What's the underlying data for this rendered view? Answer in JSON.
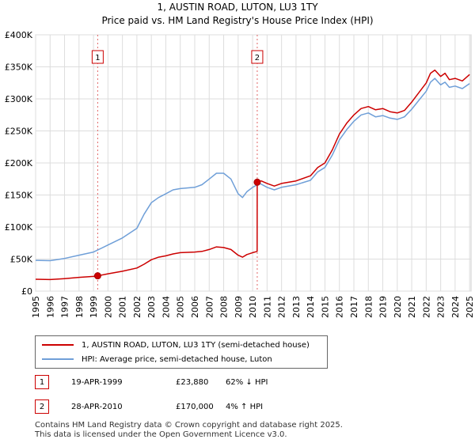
{
  "header": {
    "title": "1, AUSTIN ROAD, LUTON, LU3 1TY",
    "subtitle": "Price paid vs. HM Land Registry's House Price Index (HPI)"
  },
  "chart_data": {
    "type": "line",
    "x_range": [
      1995,
      2025.1
    ],
    "ylim": [
      0,
      400000
    ],
    "y_ticks": [
      {
        "v": 0,
        "label": "£0"
      },
      {
        "v": 50000,
        "label": "£50K"
      },
      {
        "v": 100000,
        "label": "£100K"
      },
      {
        "v": 150000,
        "label": "£150K"
      },
      {
        "v": 200000,
        "label": "£200K"
      },
      {
        "v": 250000,
        "label": "£250K"
      },
      {
        "v": 300000,
        "label": "£300K"
      },
      {
        "v": 350000,
        "label": "£350K"
      },
      {
        "v": 400000,
        "label": "£400K"
      }
    ],
    "x_ticks": [
      "1995",
      "1996",
      "1997",
      "1998",
      "1999",
      "2000",
      "2001",
      "2002",
      "2003",
      "2004",
      "2005",
      "2006",
      "2007",
      "2008",
      "2009",
      "2010",
      "2011",
      "2012",
      "2013",
      "2014",
      "2015",
      "2016",
      "2017",
      "2018",
      "2019",
      "2020",
      "2021",
      "2022",
      "2023",
      "2024",
      "2025"
    ],
    "grid": true,
    "series": [
      {
        "name": "1, AUSTIN ROAD, LUTON, LU3 1TY (semi-detached house)",
        "color": "#cc0000",
        "points": [
          [
            1995.0,
            18500
          ],
          [
            1996.0,
            18000
          ],
          [
            1997.0,
            19500
          ],
          [
            1998.0,
            21500
          ],
          [
            1999.0,
            23000
          ],
          [
            1999.29,
            23880
          ],
          [
            2000.0,
            27000
          ],
          [
            2001.0,
            31000
          ],
          [
            2002.0,
            36000
          ],
          [
            2002.5,
            42000
          ],
          [
            2003.0,
            49000
          ],
          [
            2003.5,
            53000
          ],
          [
            2004.0,
            55000
          ],
          [
            2004.5,
            58000
          ],
          [
            2005.0,
            60000
          ],
          [
            2006.0,
            61000
          ],
          [
            2006.5,
            62000
          ],
          [
            2007.0,
            65000
          ],
          [
            2007.5,
            69000
          ],
          [
            2008.0,
            68000
          ],
          [
            2008.5,
            65000
          ],
          [
            2009.0,
            56000
          ],
          [
            2009.3,
            53000
          ],
          [
            2009.6,
            57000
          ],
          [
            2010.0,
            60000
          ],
          [
            2010.31,
            62000
          ],
          [
            2010.32,
            170000
          ],
          [
            2010.6,
            172000
          ],
          [
            2011.0,
            168000
          ],
          [
            2011.5,
            164000
          ],
          [
            2012.0,
            168000
          ],
          [
            2013.0,
            172000
          ],
          [
            2014.0,
            180000
          ],
          [
            2014.5,
            193000
          ],
          [
            2015.0,
            200000
          ],
          [
            2015.5,
            220000
          ],
          [
            2016.0,
            245000
          ],
          [
            2016.5,
            262000
          ],
          [
            2017.0,
            275000
          ],
          [
            2017.5,
            285000
          ],
          [
            2018.0,
            288000
          ],
          [
            2018.5,
            283000
          ],
          [
            2019.0,
            285000
          ],
          [
            2019.5,
            280000
          ],
          [
            2020.0,
            278000
          ],
          [
            2020.5,
            282000
          ],
          [
            2021.0,
            295000
          ],
          [
            2021.5,
            310000
          ],
          [
            2022.0,
            325000
          ],
          [
            2022.3,
            340000
          ],
          [
            2022.6,
            345000
          ],
          [
            2023.0,
            335000
          ],
          [
            2023.3,
            340000
          ],
          [
            2023.6,
            330000
          ],
          [
            2024.0,
            332000
          ],
          [
            2024.5,
            328000
          ],
          [
            2025.0,
            338000
          ]
        ]
      },
      {
        "name": "HPI: Average price, semi-detached house, Luton",
        "color": "#6f9fd8",
        "points": [
          [
            1995.0,
            48000
          ],
          [
            1996.0,
            47500
          ],
          [
            1997.0,
            51000
          ],
          [
            1998.0,
            56000
          ],
          [
            1999.0,
            61000
          ],
          [
            2000.0,
            72000
          ],
          [
            2001.0,
            83000
          ],
          [
            2002.0,
            98000
          ],
          [
            2002.5,
            120000
          ],
          [
            2003.0,
            138000
          ],
          [
            2003.5,
            146000
          ],
          [
            2004.0,
            152000
          ],
          [
            2004.5,
            158000
          ],
          [
            2005.0,
            160000
          ],
          [
            2006.0,
            162000
          ],
          [
            2006.5,
            166000
          ],
          [
            2007.0,
            175000
          ],
          [
            2007.5,
            184000
          ],
          [
            2008.0,
            184000
          ],
          [
            2008.5,
            175000
          ],
          [
            2009.0,
            152000
          ],
          [
            2009.3,
            146000
          ],
          [
            2009.6,
            155000
          ],
          [
            2010.0,
            162000
          ],
          [
            2010.5,
            168000
          ],
          [
            2011.0,
            162000
          ],
          [
            2011.5,
            158000
          ],
          [
            2012.0,
            162000
          ],
          [
            2013.0,
            166000
          ],
          [
            2014.0,
            173000
          ],
          [
            2014.5,
            186000
          ],
          [
            2015.0,
            193000
          ],
          [
            2015.5,
            212000
          ],
          [
            2016.0,
            236000
          ],
          [
            2016.5,
            252000
          ],
          [
            2017.0,
            265000
          ],
          [
            2017.5,
            275000
          ],
          [
            2018.0,
            278000
          ],
          [
            2018.5,
            272000
          ],
          [
            2019.0,
            274000
          ],
          [
            2019.5,
            270000
          ],
          [
            2020.0,
            268000
          ],
          [
            2020.5,
            272000
          ],
          [
            2021.0,
            284000
          ],
          [
            2021.5,
            298000
          ],
          [
            2022.0,
            312000
          ],
          [
            2022.3,
            326000
          ],
          [
            2022.6,
            332000
          ],
          [
            2023.0,
            322000
          ],
          [
            2023.3,
            326000
          ],
          [
            2023.6,
            318000
          ],
          [
            2024.0,
            320000
          ],
          [
            2024.5,
            316000
          ],
          [
            2025.0,
            324000
          ]
        ]
      }
    ],
    "sales": [
      {
        "n": "1",
        "x": 1999.29,
        "y": 23880
      },
      {
        "n": "2",
        "x": 2010.32,
        "y": 170000
      }
    ]
  },
  "legend": {
    "items": [
      {
        "label": "1, AUSTIN ROAD, LUTON, LU3 1TY (semi-detached house)",
        "color": "#cc0000"
      },
      {
        "label": "HPI: Average price, semi-detached house, Luton",
        "color": "#6f9fd8"
      }
    ]
  },
  "transactions": [
    {
      "n": "1",
      "date": "19-APR-1999",
      "price": "£23,880",
      "hpi": "62% ↓ HPI"
    },
    {
      "n": "2",
      "date": "28-APR-2010",
      "price": "£170,000",
      "hpi": "4% ↑ HPI"
    }
  ],
  "footer": {
    "line1": "Contains HM Land Registry data © Crown copyright and database right 2025.",
    "line2": "This data is licensed under the Open Government Licence v3.0."
  }
}
